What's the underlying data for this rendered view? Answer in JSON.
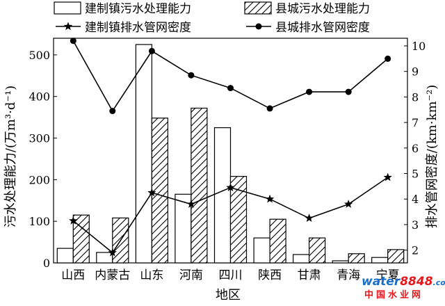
{
  "chart_data": {
    "type": "bar",
    "categories": [
      "山西",
      "内蒙古",
      "山东",
      "河南",
      "四川",
      "陕西",
      "甘肃",
      "青海",
      "宁夏"
    ],
    "xlabel": "地区",
    "ylabel_left": "污水处理能力/(万m³·d⁻¹)",
    "ylabel_right": "排水管网密度/(km·km⁻²)",
    "ylim_left": [
      0,
      540
    ],
    "yticks_left": [
      "0",
      "100",
      "200",
      "300",
      "400",
      "500"
    ],
    "ylim_right": [
      1.5,
      10.3
    ],
    "yticks_right": [
      "2",
      "3",
      "4",
      "5",
      "6",
      "7",
      "8",
      "9",
      "10"
    ],
    "legend_position": "top",
    "bar_series": [
      {
        "name": "建制镇污水处理能力",
        "values": [
          35,
          25,
          525,
          165,
          325,
          60,
          20,
          5,
          13
        ],
        "fill": "#ffffff"
      },
      {
        "name": "县城污水处理能力",
        "values": [
          115,
          108,
          348,
          372,
          208,
          105,
          60,
          22,
          32
        ],
        "fill": "hatch"
      }
    ],
    "line_series": [
      {
        "name": "建制镇排水管网密度",
        "values": [
          3.15,
          1.9,
          4.25,
          3.8,
          4.45,
          4.0,
          3.25,
          3.8,
          4.85
        ],
        "marker": "star"
      },
      {
        "name": "县城排水管网密度",
        "values": [
          10.2,
          7.45,
          9.8,
          8.85,
          8.35,
          7.55,
          8.2,
          8.2,
          9.5
        ],
        "marker": "circle"
      }
    ]
  },
  "watermark": {
    "logo_part1": "water",
    "logo_part2": "8848",
    "logo_suffix": ".com",
    "cn_text": "中国水业网"
  }
}
